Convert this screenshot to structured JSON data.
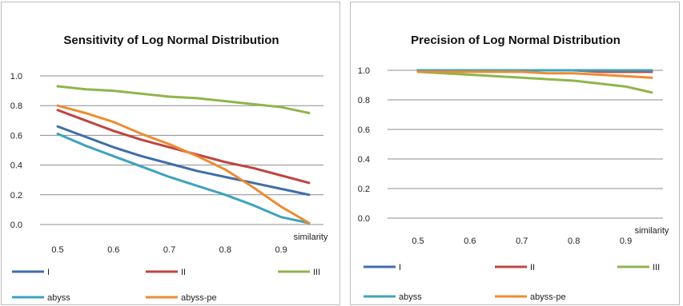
{
  "chart_data": [
    {
      "type": "line",
      "title": "Sensitivity of Log Normal Distribution",
      "xlabel": "similarity",
      "ylabel": "",
      "x": [
        0.5,
        0.55,
        0.6,
        0.65,
        0.7,
        0.75,
        0.8,
        0.85,
        0.9,
        0.95
      ],
      "x_ticks": [
        "0.5",
        "0.6",
        "0.7",
        "0.8",
        "0.9"
      ],
      "y_ticks": [
        "0.0",
        "0.2",
        "0.4",
        "0.6",
        "0.8",
        "1.0"
      ],
      "ylim": [
        0,
        1.0
      ],
      "xlim": [
        0.5,
        0.95
      ],
      "grid": true,
      "legend_position": "bottom",
      "series": [
        {
          "name": "I",
          "color": "#3f6ea8",
          "values": [
            0.66,
            0.59,
            0.52,
            0.46,
            0.41,
            0.36,
            0.32,
            0.28,
            0.24,
            0.2
          ]
        },
        {
          "name": "II",
          "color": "#bf4440",
          "values": [
            0.77,
            0.7,
            0.63,
            0.57,
            0.52,
            0.47,
            0.42,
            0.38,
            0.33,
            0.28
          ]
        },
        {
          "name": "III",
          "color": "#8fb54a",
          "values": [
            0.93,
            0.91,
            0.9,
            0.88,
            0.86,
            0.85,
            0.83,
            0.81,
            0.79,
            0.75
          ]
        },
        {
          "name": "abyss",
          "color": "#3ea2be",
          "values": [
            0.61,
            0.53,
            0.46,
            0.39,
            0.32,
            0.26,
            0.2,
            0.13,
            0.05,
            0.01
          ]
        },
        {
          "name": "abyss-pe",
          "color": "#ec8c34",
          "values": [
            0.8,
            0.75,
            0.69,
            0.61,
            0.54,
            0.46,
            0.37,
            0.25,
            0.12,
            0.01
          ]
        }
      ]
    },
    {
      "type": "line",
      "title": "Precision of Log Normal Distribution",
      "xlabel": "similarity",
      "ylabel": "",
      "x": [
        0.5,
        0.55,
        0.6,
        0.65,
        0.7,
        0.75,
        0.8,
        0.85,
        0.9,
        0.95
      ],
      "x_ticks": [
        "0.5",
        "0.6",
        "0.7",
        "0.8",
        "0.9"
      ],
      "y_ticks": [
        "0.0",
        "0.2",
        "0.4",
        "0.6",
        "0.8",
        "1.0"
      ],
      "ylim": [
        0,
        1.0
      ],
      "xlim": [
        0.5,
        0.95
      ],
      "grid": true,
      "legend_position": "bottom",
      "series": [
        {
          "name": "I",
          "color": "#3f6ea8",
          "values": [
            1.0,
            1.0,
            1.0,
            1.0,
            1.0,
            1.0,
            1.0,
            1.0,
            1.0,
            0.99
          ]
        },
        {
          "name": "II",
          "color": "#bf4440",
          "values": [
            1.0,
            1.0,
            1.0,
            1.0,
            1.0,
            1.0,
            1.0,
            0.99,
            0.99,
            0.99
          ]
        },
        {
          "name": "III",
          "color": "#8fb54a",
          "values": [
            0.99,
            0.98,
            0.97,
            0.96,
            0.95,
            0.94,
            0.93,
            0.91,
            0.89,
            0.85
          ]
        },
        {
          "name": "abyss",
          "color": "#3ea2be",
          "values": [
            1.0,
            1.0,
            1.0,
            1.0,
            1.0,
            1.0,
            1.0,
            1.0,
            1.0,
            1.0
          ]
        },
        {
          "name": "abyss-pe",
          "color": "#ec8c34",
          "values": [
            0.99,
            0.99,
            0.99,
            0.99,
            0.99,
            0.98,
            0.98,
            0.97,
            0.96,
            0.95
          ]
        }
      ]
    }
  ]
}
